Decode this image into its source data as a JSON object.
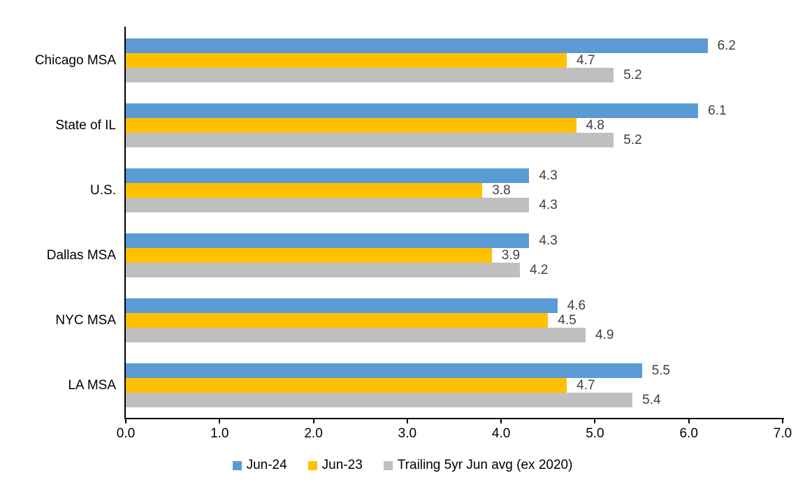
{
  "chart_data": {
    "type": "bar",
    "orientation": "horizontal",
    "title": "",
    "xlabel": "",
    "ylabel": "",
    "categories": [
      "Chicago MSA",
      "State of IL",
      "U.S.",
      "Dallas MSA",
      "NYC MSA",
      "LA MSA"
    ],
    "series": [
      {
        "name": "Jun-24",
        "color": "#5B9BD5",
        "values": [
          6.2,
          6.1,
          4.3,
          4.3,
          4.6,
          5.5
        ]
      },
      {
        "name": "Jun-23",
        "color": "#FFC000",
        "values": [
          4.7,
          4.8,
          3.8,
          3.9,
          4.5,
          4.7
        ]
      },
      {
        "name": "Trailing 5yr Jun avg (ex 2020)",
        "color": "#BFBFBF",
        "values": [
          5.2,
          5.2,
          4.3,
          4.2,
          4.9,
          5.4
        ]
      }
    ],
    "x_axis": {
      "min": 0,
      "max": 7,
      "tick_step": 1,
      "tick_labels": [
        "0.0",
        "1.0",
        "2.0",
        "3.0",
        "4.0",
        "5.0",
        "6.0",
        "7.0"
      ]
    },
    "data_labels": {
      "show": true,
      "decimals": 1,
      "color": "#404040"
    },
    "legend": {
      "position": "bottom"
    },
    "grid": false
  }
}
